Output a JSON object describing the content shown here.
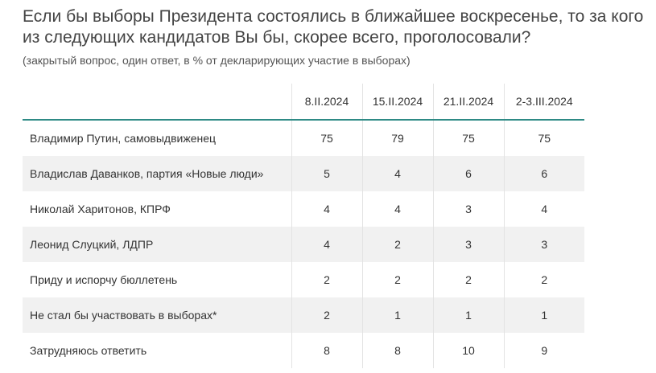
{
  "title": "Если бы выборы Президента состоялись в ближайшее воскресенье, то за кого из следующих кандидатов Вы бы, скорее всего, проголосовали?",
  "subtitle": "(закрытый вопрос, один ответ, в % от декларирующих участие в выборах)",
  "table": {
    "columns": [
      "8.II.2024",
      "15.II.2024",
      "21.II.2024",
      "2-3.III.2024"
    ],
    "rows": [
      {
        "label": "Владимир Путин, самовыдвиженец",
        "values": [
          "75",
          "79",
          "75",
          "75"
        ]
      },
      {
        "label": "Владислав Даванков, партия «Новые люди»",
        "values": [
          "5",
          "4",
          "6",
          "6"
        ]
      },
      {
        "label": "Николай Харитонов, КПРФ",
        "values": [
          "4",
          "4",
          "3",
          "4"
        ]
      },
      {
        "label": "Леонид Слуцкий, ЛДПР",
        "values": [
          "4",
          "2",
          "3",
          "3"
        ]
      },
      {
        "label": "Приду и испорчу бюллетень",
        "values": [
          "2",
          "2",
          "2",
          "2"
        ]
      },
      {
        "label": "Не стал бы участвовать в выборах*",
        "values": [
          "2",
          "1",
          "1",
          "1"
        ]
      },
      {
        "label": "Затрудняюсь ответить",
        "values": [
          "8",
          "8",
          "10",
          "9"
        ]
      }
    ]
  },
  "chart_data": {
    "type": "table",
    "title": "Если бы выборы Президента состоялись в ближайшее воскресенье, то за кого из следующих кандидатов Вы бы, скорее всего, проголосовали?",
    "subtitle": "(закрытый вопрос, один ответ, в % от декларирующих участие в выборах)",
    "categories": [
      "Владимир Путин, самовыдвиженец",
      "Владислав Даванков, партия «Новые люди»",
      "Николай Харитонов, КПРФ",
      "Леонид Слуцкий, ЛДПР",
      "Приду и испорчу бюллетень",
      "Не стал бы участвовать в выборах*",
      "Затрудняюсь ответить"
    ],
    "series": [
      {
        "name": "8.II.2024",
        "values": [
          75,
          5,
          4,
          4,
          2,
          2,
          8
        ]
      },
      {
        "name": "15.II.2024",
        "values": [
          79,
          4,
          4,
          2,
          2,
          1,
          8
        ]
      },
      {
        "name": "21.II.2024",
        "values": [
          75,
          6,
          3,
          3,
          2,
          1,
          10
        ]
      },
      {
        "name": "2-3.III.2024",
        "values": [
          75,
          6,
          4,
          3,
          2,
          1,
          9
        ]
      }
    ]
  },
  "colors": {
    "header_rule": "#2e8a85",
    "stripe": "#f1f1f1"
  }
}
